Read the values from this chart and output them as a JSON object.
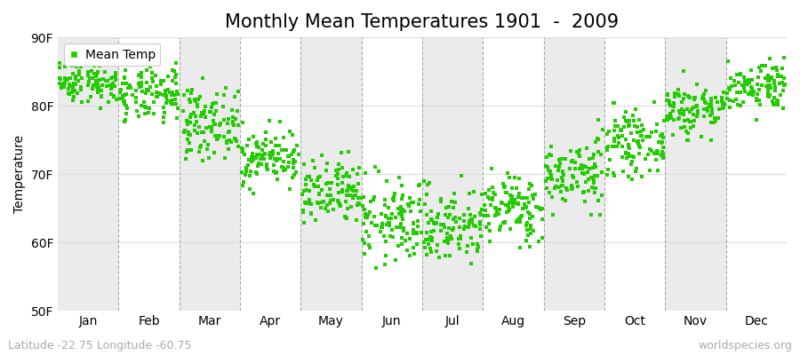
{
  "title": "Monthly Mean Temperatures 1901  -  2009",
  "ylabel": "Temperature",
  "ylim": [
    50,
    90
  ],
  "yticks": [
    50,
    60,
    70,
    80,
    90
  ],
  "ytick_labels": [
    "50F",
    "60F",
    "70F",
    "80F",
    "90F"
  ],
  "months": [
    "Jan",
    "Feb",
    "Mar",
    "Apr",
    "May",
    "Jun",
    "Jul",
    "Aug",
    "Sep",
    "Oct",
    "Nov",
    "Dec"
  ],
  "month_means_F": [
    83.5,
    81.5,
    77.5,
    72.5,
    67.0,
    63.0,
    62.5,
    65.0,
    70.0,
    74.5,
    79.5,
    83.0
  ],
  "month_stds_F": [
    1.5,
    2.0,
    2.5,
    2.0,
    2.5,
    3.0,
    2.8,
    2.5,
    2.5,
    2.2,
    2.0,
    1.8
  ],
  "month_mins_F": [
    79.0,
    77.0,
    72.0,
    67.0,
    60.0,
    56.0,
    54.0,
    59.0,
    64.0,
    69.0,
    75.0,
    78.0
  ],
  "month_maxs_F": [
    88.0,
    87.5,
    84.0,
    78.5,
    74.0,
    71.0,
    71.0,
    71.0,
    78.0,
    80.5,
    88.5,
    87.0
  ],
  "n_years": 109,
  "marker_color": "#22CC00",
  "marker": "s",
  "marker_size": 2.5,
  "fig_bg_color": "#FFFFFF",
  "plot_bg_color": "#FFFFFF",
  "alt_band_color": "#EBEBEB",
  "grid_color": "#DDDDDD",
  "dashed_line_color": "#AAAAAA",
  "legend_label": "Mean Temp",
  "title_fontsize": 15,
  "label_fontsize": 10,
  "tick_fontsize": 10,
  "footnote_left": "Latitude -22.75 Longitude -60.75",
  "footnote_right": "worldspecies.org",
  "footnote_fontsize": 9,
  "footnote_color": "#AAAAAA"
}
